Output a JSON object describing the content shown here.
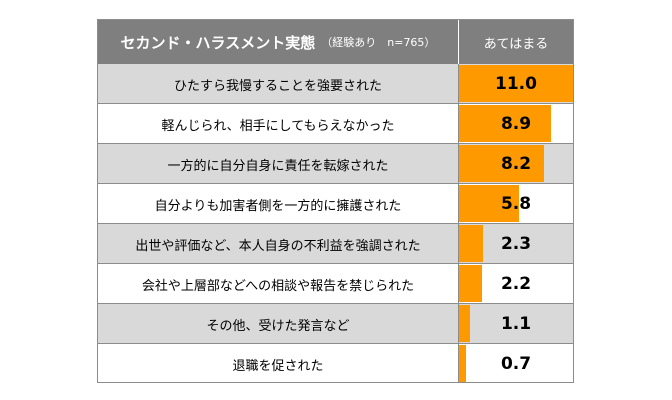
{
  "header": {
    "title": "セカンド・ハラスメント実態",
    "subtitle": "（経験あり　n=765）",
    "column": "あてはまる"
  },
  "colors": {
    "bar": "#ff9900",
    "header_bg": "#7f7f7f",
    "row_shade": "#d9d9d9"
  },
  "chart_data": {
    "type": "bar",
    "orientation": "horizontal",
    "categories": [
      "ひたすら我慢することを強要された",
      "軽んじられ、相手にしてもらえなかった",
      "一方的に自分自身に責任を転嫁された",
      "自分よりも加害者側を一方的に擁護された",
      "出世や評価など、本人自身の不利益を強調された",
      "会社や上層部などへの相談や報告を禁じられた",
      "その他、受けた発言など",
      "退職を促された"
    ],
    "values": [
      11.0,
      8.9,
      8.2,
      5.8,
      2.3,
      2.2,
      1.1,
      0.7
    ],
    "value_labels": [
      "11.0",
      "8.9",
      "8.2",
      "5.8",
      "2.3",
      "2.2",
      "1.1",
      "0.7"
    ],
    "xlim": [
      0,
      11.0
    ]
  }
}
